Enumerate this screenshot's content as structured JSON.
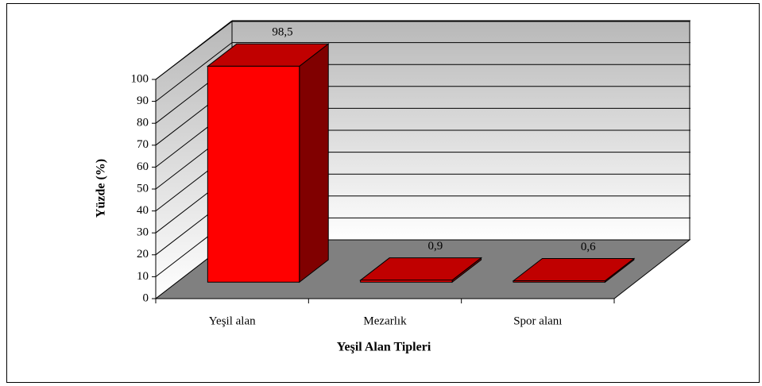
{
  "chart_data": {
    "type": "bar3d",
    "categories": [
      "Yeşil alan",
      "Mezarlık",
      "Spor alanı"
    ],
    "values": [
      98.5,
      0.9,
      0.6
    ],
    "value_labels": [
      "98,5",
      "0,9",
      "0,6"
    ],
    "color": "#ff0000",
    "ylabel": "Yüzde (%)",
    "xlabel": "Yeşil Alan Tipleri",
    "ylim": [
      0,
      100
    ],
    "yticks": [
      0,
      10,
      20,
      30,
      40,
      50,
      60,
      70,
      80,
      90,
      100
    ],
    "grid": true
  }
}
